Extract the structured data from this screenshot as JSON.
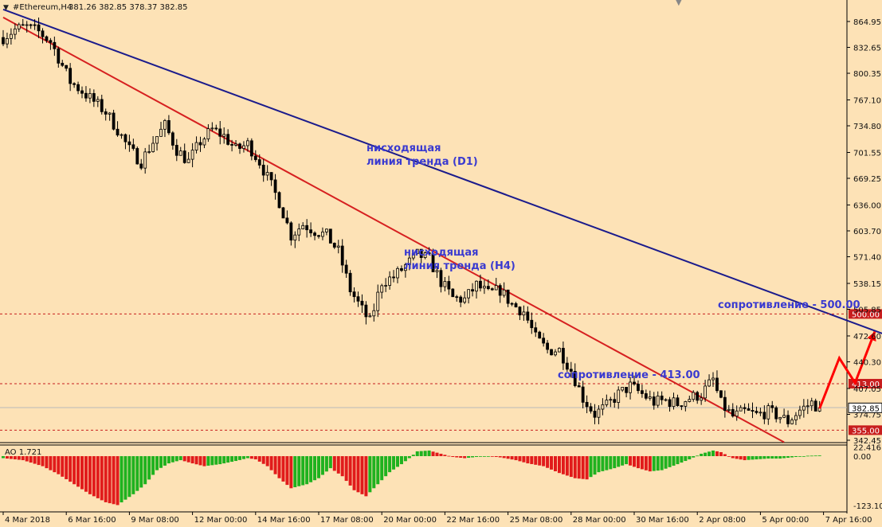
{
  "header": {
    "symbol": "#Ethereum,H4",
    "ohlc": "381.26 382.85 378.37 382.85"
  },
  "colors": {
    "background": "#fde2b6",
    "candle": "#000000",
    "trend_d1": "#1b1b8c",
    "trend_h4": "#d62020",
    "level": "#c81e1e",
    "annotation_text": "#3a3ad0",
    "ao_up": "#1fb21f",
    "ao_down": "#e11b1b",
    "forecast": "#ff0000"
  },
  "annotations": {
    "d1_trend_l1": "нисходящая",
    "d1_trend_l2": "линия тренда (D1)",
    "h4_trend_l1": "нисходящая",
    "h4_trend_l2": "линия тренда (H4)",
    "resistance_500": "сопротивление - 500.00",
    "resistance_413": "сопротивление - 413.00"
  },
  "indicator": {
    "label": "AO 1.721"
  },
  "chart_data": {
    "type": "candlestick",
    "title": "#Ethereum,H4",
    "price_axis_ticks": [
      "864.95",
      "832.65",
      "800.35",
      "767.10",
      "734.80",
      "701.55",
      "669.25",
      "636.00",
      "603.70",
      "571.40",
      "538.15",
      "505.85",
      "472.60",
      "440.30",
      "407.05",
      "374.75",
      "342.45"
    ],
    "price_axis_values": [
      864.95,
      832.65,
      800.35,
      767.1,
      734.8,
      701.55,
      669.25,
      636.0,
      603.7,
      571.4,
      538.15,
      505.85,
      472.6,
      440.3,
      407.05,
      374.75,
      342.45
    ],
    "ylim": [
      340,
      880
    ],
    "level_labels": [
      "500.00",
      "413.00",
      "355.00"
    ],
    "levels": [
      500.0,
      413.0,
      355.0
    ],
    "current_price_label": "382.85",
    "current_price": 382.85,
    "x_labels": [
      "4 Mar 2018",
      "6 Mar 16:00",
      "9 Mar 08:00",
      "12 Mar 00:00",
      "14 Mar 16:00",
      "17 Mar 08:00",
      "20 Mar 00:00",
      "22 Mar 16:00",
      "25 Mar 08:00",
      "28 Mar 00:00",
      "30 Mar 16:00",
      "2 Apr 08:00",
      "5 Apr 00:00",
      "7 Apr 16:00"
    ],
    "x_label_bars": [
      0,
      16,
      32,
      48,
      64,
      80,
      96,
      112,
      128,
      144,
      160,
      176,
      192,
      208
    ],
    "close_path": [
      [
        0,
        845
      ],
      [
        3,
        855
      ],
      [
        6,
        858
      ],
      [
        9,
        852
      ],
      [
        12,
        840
      ],
      [
        14,
        820
      ],
      [
        17,
        790
      ],
      [
        20,
        778
      ],
      [
        23,
        765
      ],
      [
        26,
        752
      ],
      [
        29,
        730
      ],
      [
        32,
        705
      ],
      [
        35,
        690
      ],
      [
        38,
        715
      ],
      [
        41,
        735
      ],
      [
        44,
        705
      ],
      [
        47,
        690
      ],
      [
        50,
        715
      ],
      [
        53,
        730
      ],
      [
        56,
        722
      ],
      [
        59,
        705
      ],
      [
        62,
        712
      ],
      [
        65,
        690
      ],
      [
        67,
        670
      ],
      [
        70,
        640
      ],
      [
        73,
        598
      ],
      [
        76,
        612
      ],
      [
        79,
        604
      ],
      [
        82,
        598
      ],
      [
        85,
        578
      ],
      [
        88,
        530
      ],
      [
        91,
        505
      ],
      [
        93,
        490
      ],
      [
        96,
        540
      ],
      [
        99,
        546
      ],
      [
        102,
        560
      ],
      [
        105,
        574
      ],
      [
        108,
        568
      ],
      [
        111,
        540
      ],
      [
        114,
        520
      ],
      [
        117,
        518
      ],
      [
        120,
        536
      ],
      [
        123,
        525
      ],
      [
        126,
        530
      ],
      [
        129,
        512
      ],
      [
        132,
        503
      ],
      [
        135,
        470
      ],
      [
        138,
        455
      ],
      [
        141,
        455
      ],
      [
        144,
        430
      ],
      [
        147,
        395
      ],
      [
        150,
        375
      ],
      [
        153,
        385
      ],
      [
        156,
        400
      ],
      [
        159,
        410
      ],
      [
        162,
        400
      ],
      [
        165,
        390
      ],
      [
        168,
        392
      ],
      [
        171,
        388
      ],
      [
        174,
        395
      ],
      [
        177,
        400
      ],
      [
        180,
        418
      ],
      [
        182,
        388
      ],
      [
        185,
        372
      ],
      [
        188,
        378
      ],
      [
        191,
        374
      ],
      [
        194,
        378
      ],
      [
        197,
        372
      ],
      [
        199,
        366
      ],
      [
        202,
        380
      ],
      [
        205,
        389
      ],
      [
        207,
        382.85
      ]
    ],
    "trend_lines": [
      {
        "name": "нисходящая линия тренда (D1)",
        "from": [
          0,
          880
        ],
        "to": [
          258,
          412
        ]
      },
      {
        "name": "нисходящая линия тренда (H4)",
        "from": [
          0,
          870
        ],
        "to": [
          198,
          340
        ]
      }
    ],
    "forecast_path": [
      [
        207,
        382
      ],
      [
        212,
        445
      ],
      [
        216,
        414
      ],
      [
        221,
        478
      ]
    ],
    "ao": {
      "label": "AO 1.721",
      "ticks": [
        "22.416",
        "0.00",
        "-123.103"
      ],
      "tick_values": [
        22.416,
        0.0,
        -123.103
      ],
      "ylim": [
        -130,
        30
      ],
      "values_path": [
        [
          0,
          -5
        ],
        [
          5,
          -10
        ],
        [
          10,
          -25
        ],
        [
          14,
          -45
        ],
        [
          18,
          -70
        ],
        [
          22,
          -95
        ],
        [
          26,
          -115
        ],
        [
          29,
          -122
        ],
        [
          33,
          -95
        ],
        [
          36,
          -70
        ],
        [
          39,
          -35
        ],
        [
          42,
          -18
        ],
        [
          45,
          -10
        ],
        [
          48,
          -18
        ],
        [
          51,
          -25
        ],
        [
          55,
          -20
        ],
        [
          59,
          -12
        ],
        [
          62,
          -5
        ],
        [
          64,
          -8
        ],
        [
          67,
          -25
        ],
        [
          70,
          -55
        ],
        [
          73,
          -80
        ],
        [
          77,
          -70
        ],
        [
          80,
          -55
        ],
        [
          83,
          -30
        ],
        [
          86,
          -50
        ],
        [
          89,
          -85
        ],
        [
          92,
          -100
        ],
        [
          95,
          -70
        ],
        [
          98,
          -40
        ],
        [
          101,
          -20
        ],
        [
          103,
          -5
        ],
        [
          105,
          12
        ],
        [
          108,
          14
        ],
        [
          111,
          6
        ],
        [
          114,
          -2
        ],
        [
          117,
          -5
        ],
        [
          120,
          -2
        ],
        [
          123,
          0
        ],
        [
          126,
          -3
        ],
        [
          130,
          -10
        ],
        [
          133,
          -18
        ],
        [
          137,
          -25
        ],
        [
          141,
          -42
        ],
        [
          145,
          -55
        ],
        [
          148,
          -58
        ],
        [
          151,
          -40
        ],
        [
          155,
          -30
        ],
        [
          158,
          -20
        ],
        [
          161,
          -30
        ],
        [
          164,
          -38
        ],
        [
          167,
          -35
        ],
        [
          171,
          -20
        ],
        [
          174,
          -8
        ],
        [
          177,
          6
        ],
        [
          180,
          14
        ],
        [
          182,
          10
        ],
        [
          185,
          -5
        ],
        [
          188,
          -10
        ],
        [
          191,
          -8
        ],
        [
          194,
          -6
        ],
        [
          197,
          -6
        ],
        [
          200,
          -3
        ],
        [
          204,
          1
        ],
        [
          207,
          1.721
        ]
      ]
    }
  }
}
